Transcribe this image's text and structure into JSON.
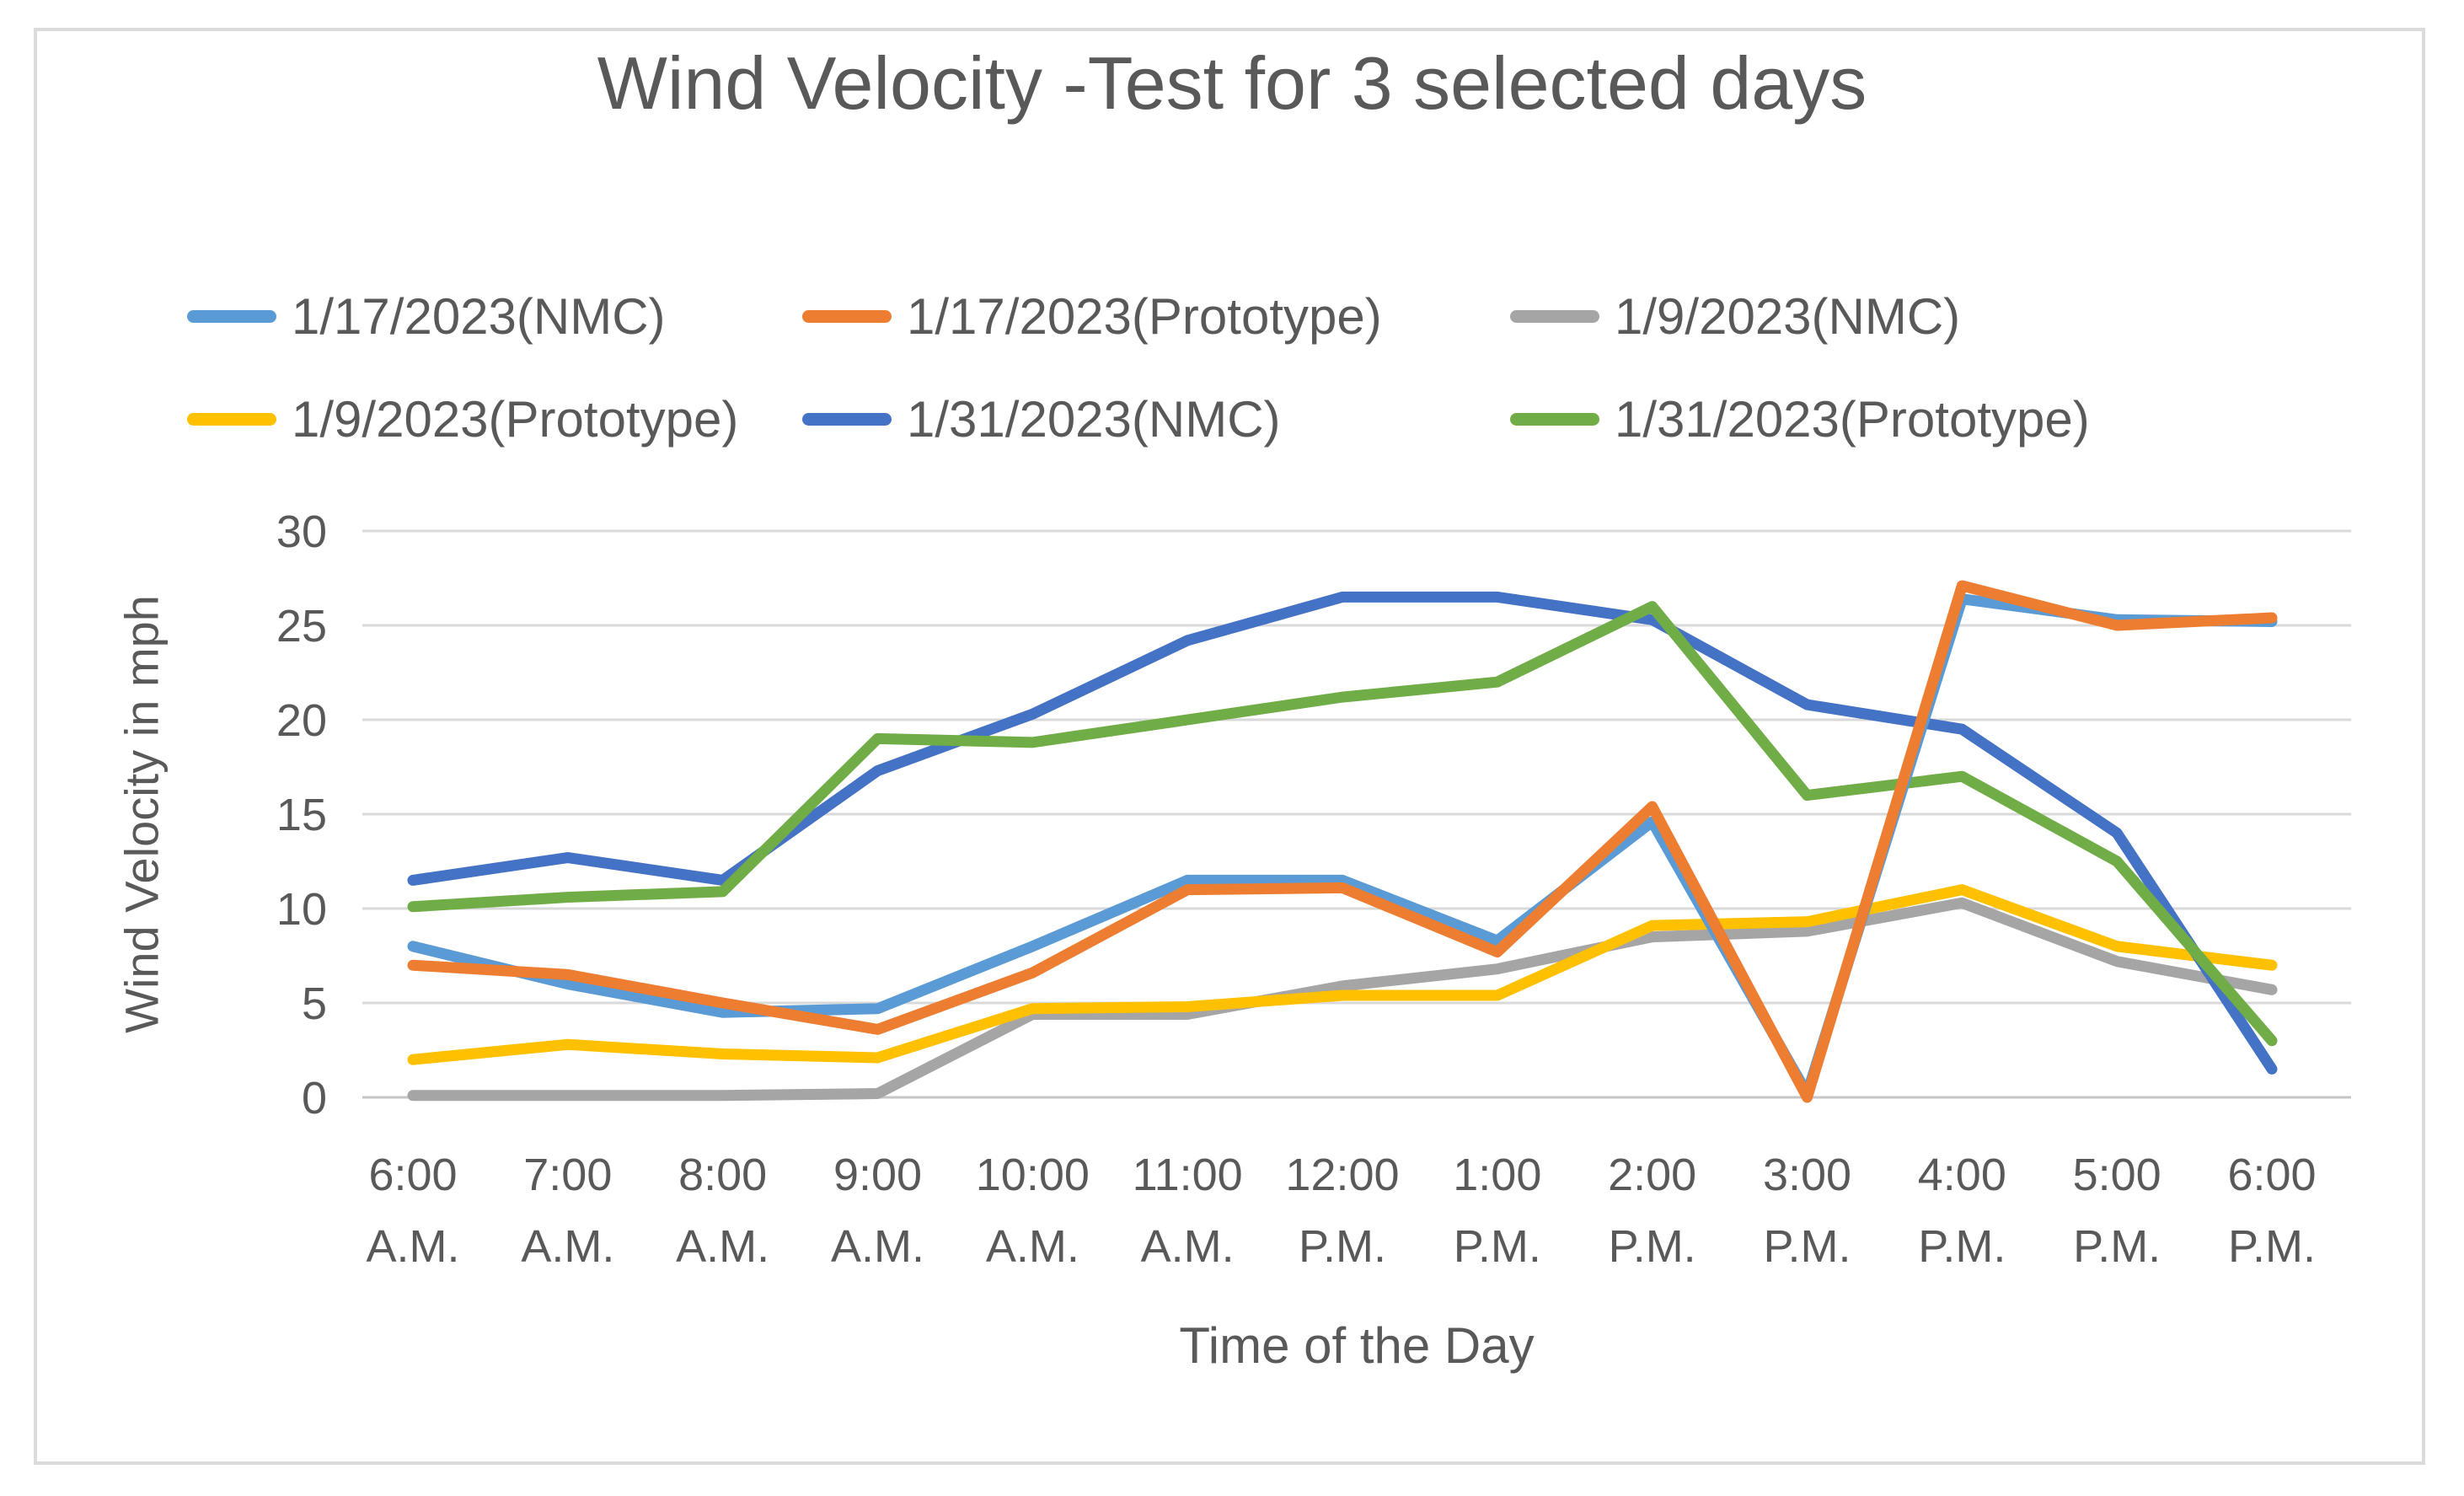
{
  "chart_data": {
    "type": "line",
    "title": "Wind Velocity -Test for 3 selected days",
    "xlabel": "Time of the Day",
    "ylabel": "Wind Velocity in mph",
    "ylim": [
      0,
      30
    ],
    "yticks": [
      0,
      5,
      10,
      15,
      20,
      25,
      30
    ],
    "grid": true,
    "legend_position": "top",
    "text_color": "#595959",
    "gridline_color": "#D9D9D9",
    "axisline_color": "#C6C6C6",
    "categories": [
      "6:00 A.M.",
      "7:00 A.M.",
      "8:00 A.M.",
      "9:00 A.M.",
      "10:00 A.M.",
      "11:00 A.M.",
      "12:00 P.M.",
      "1:00 P.M.",
      "2:00 P.M.",
      "3:00 P.M.",
      "4:00 P.M.",
      "5:00 P.M.",
      "6:00 P.M."
    ],
    "series": [
      {
        "name": "1/17/2023(NMC)",
        "color": "#5B9BD5",
        "values": [
          8.0,
          6.0,
          4.5,
          4.7,
          8.0,
          11.5,
          11.5,
          8.3,
          14.6,
          0.2,
          26.4,
          25.3,
          25.2
        ]
      },
      {
        "name": "1/17/2023(Prototype)",
        "color": "#ED7D31",
        "values": [
          7.0,
          6.5,
          5.0,
          3.6,
          6.6,
          11.0,
          11.1,
          7.7,
          15.4,
          0.0,
          27.1,
          25.0,
          25.4
        ]
      },
      {
        "name": "1/9/2023(NMC)",
        "color": "#A5A5A5",
        "values": [
          0.1,
          0.1,
          0.1,
          0.2,
          4.4,
          4.4,
          5.9,
          6.8,
          8.5,
          8.8,
          10.3,
          7.2,
          5.7
        ]
      },
      {
        "name": "1/9/2023(Prototype)",
        "color": "#FFC000",
        "values": [
          2.0,
          2.8,
          2.3,
          2.1,
          4.7,
          4.8,
          5.4,
          5.4,
          9.1,
          9.3,
          11.0,
          8.0,
          7.0
        ]
      },
      {
        "name": "1/31/2023(NMC)",
        "color": "#4472C4",
        "values": [
          11.5,
          12.7,
          11.5,
          17.3,
          20.3,
          24.2,
          26.5,
          26.5,
          25.3,
          20.8,
          19.5,
          14.0,
          1.5
        ]
      },
      {
        "name": "1/31/2023(Prototype)",
        "color": "#70AD47",
        "values": [
          10.1,
          10.6,
          10.9,
          19.0,
          18.8,
          20.0,
          21.2,
          22.0,
          26.0,
          16.0,
          17.0,
          12.5,
          3.0
        ]
      }
    ],
    "draw_order": [
      2,
      3,
      4,
      5,
      0,
      1
    ]
  }
}
